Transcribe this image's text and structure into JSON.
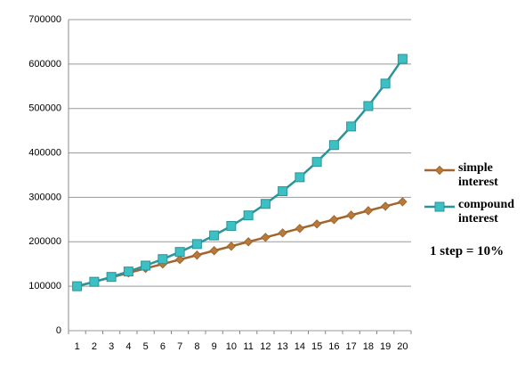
{
  "chart_data": {
    "type": "line",
    "categories": [
      1,
      2,
      3,
      4,
      5,
      6,
      7,
      8,
      9,
      10,
      11,
      12,
      13,
      14,
      15,
      16,
      17,
      18,
      19,
      20
    ],
    "series": [
      {
        "name": "simple interest",
        "color": "#a0662e",
        "marker": "diamond",
        "values": [
          100000,
          110000,
          120000,
          130000,
          140000,
          150000,
          160000,
          170000,
          180000,
          190000,
          200000,
          210000,
          220000,
          230000,
          240000,
          250000,
          260000,
          270000,
          280000,
          290000
        ]
      },
      {
        "name": "compound interest",
        "color": "#2a9499",
        "marker": "square",
        "values": [
          100000,
          110000,
          121000,
          133100,
          146410,
          161051,
          177156,
          194872,
          214359,
          235795,
          259374,
          285312,
          313843,
          345227,
          379750,
          417725,
          459497,
          505447,
          555992,
          611591
        ]
      }
    ],
    "ylim": [
      0,
      700000
    ],
    "yticks": [
      0,
      100000,
      200000,
      300000,
      400000,
      500000,
      600000,
      700000
    ],
    "grid": true,
    "legend": "right",
    "annotation": "1 step = 10%"
  }
}
